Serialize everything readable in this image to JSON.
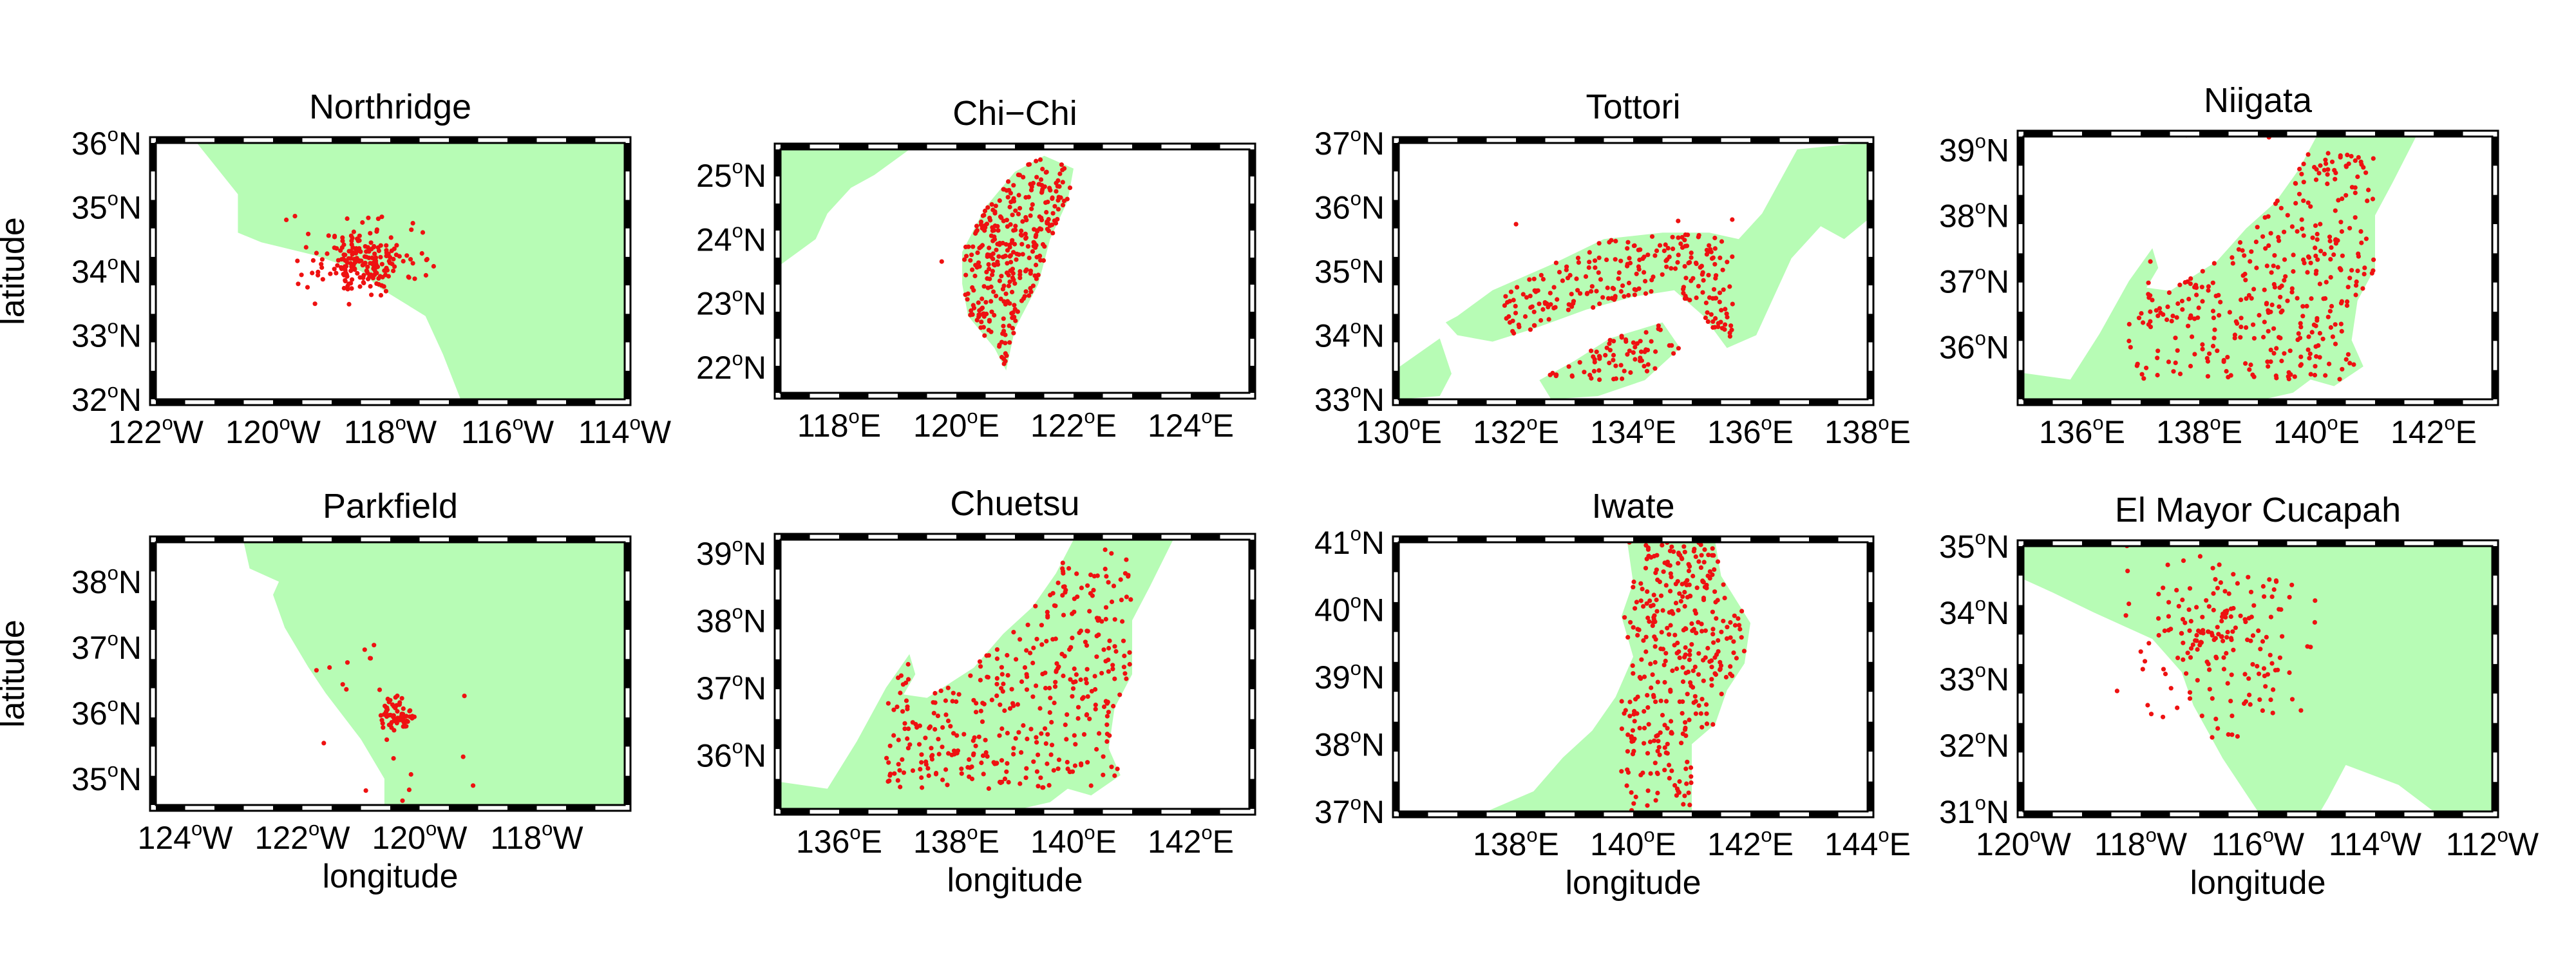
{
  "panels": [
    {
      "id": "northridge",
      "title": "Northridge",
      "axis_labels": {
        "y": "latitude",
        "x": ""
      },
      "x_ticks": [
        "122",
        "120",
        "118",
        "116",
        "114"
      ],
      "x_hemi": "W",
      "y_ticks": [
        "36",
        "35",
        "34",
        "33",
        "32"
      ],
      "y_hemi": "N",
      "lon_range": [
        -122,
        -114
      ],
      "lat_range": [
        32,
        36
      ],
      "land": [
        [
          [
            -121.3,
            36
          ],
          [
            -114,
            36
          ],
          [
            -114,
            32
          ],
          [
            -116.8,
            32
          ],
          [
            -117.1,
            32.7
          ],
          [
            -117.4,
            33.3
          ],
          [
            -118.2,
            33.75
          ],
          [
            -118.5,
            34.0
          ],
          [
            -119.3,
            34.25
          ],
          [
            -120.2,
            34.45
          ],
          [
            -120.6,
            34.6
          ],
          [
            -120.6,
            35.2
          ],
          [
            -121.3,
            36
          ]
        ]
      ],
      "cluster": {
        "center": [
          -118.45,
          34.15
        ],
        "spread": [
          0.35,
          0.25
        ],
        "count": 180,
        "scatter_count": 35,
        "scatter_spread": [
          0.9,
          0.6
        ],
        "seed": 11
      }
    },
    {
      "id": "chi-chi",
      "title": "Chi−Chi",
      "axis_labels": {
        "y": "",
        "x": ""
      },
      "x_ticks": [
        "118",
        "120",
        "122",
        "124"
      ],
      "x_hemi": "E",
      "y_ticks": [
        "25",
        "24",
        "23",
        "22"
      ],
      "y_hemi": "N",
      "lon_range": [
        117,
        125
      ],
      "lat_range": [
        21.6,
        25.4
      ],
      "land": [
        [
          [
            117,
            23.6
          ],
          [
            117,
            25.4
          ],
          [
            119.2,
            25.4
          ],
          [
            118.6,
            25.0
          ],
          [
            118.2,
            24.8
          ],
          [
            117.8,
            24.4
          ],
          [
            117.6,
            24.0
          ],
          [
            117,
            23.6
          ]
        ]
      ],
      "island": [
        [
          [
            121.5,
            25.3
          ],
          [
            122.0,
            25.1
          ],
          [
            121.9,
            24.6
          ],
          [
            121.6,
            24.0
          ],
          [
            121.4,
            23.3
          ],
          [
            121.0,
            22.6
          ],
          [
            120.85,
            21.95
          ],
          [
            120.65,
            22.3
          ],
          [
            120.2,
            22.8
          ],
          [
            120.1,
            23.3
          ],
          [
            120.1,
            23.8
          ],
          [
            120.5,
            24.5
          ],
          [
            121.0,
            25.05
          ],
          [
            121.5,
            25.3
          ]
        ]
      ],
      "cluster": {
        "polygon_fill": true,
        "count": 330,
        "scatter_count": 3,
        "seed": 22
      }
    },
    {
      "id": "tottori",
      "title": "Tottori",
      "axis_labels": {
        "y": "",
        "x": ""
      },
      "x_ticks": [
        "130",
        "132",
        "134",
        "136",
        "138"
      ],
      "x_hemi": "E",
      "y_ticks": [
        "37",
        "36",
        "35",
        "34",
        "33"
      ],
      "y_hemi": "N",
      "lon_range": [
        130,
        138
      ],
      "lat_range": [
        33,
        37
      ],
      "land": [
        [
          [
            131,
            34.3
          ],
          [
            131.6,
            34.7
          ],
          [
            132.6,
            35.1
          ],
          [
            133.5,
            35.5
          ],
          [
            134.5,
            35.6
          ],
          [
            135.3,
            35.6
          ],
          [
            135.8,
            35.5
          ],
          [
            136.2,
            35.9
          ],
          [
            136.8,
            36.9
          ],
          [
            137.9,
            37
          ],
          [
            138,
            37
          ],
          [
            138,
            35.8
          ],
          [
            137.6,
            35.5
          ],
          [
            137.2,
            35.7
          ],
          [
            136.7,
            35.2
          ],
          [
            136.4,
            34.6
          ],
          [
            136.1,
            34.0
          ],
          [
            135.6,
            33.8
          ],
          [
            135.2,
            34.3
          ],
          [
            134.7,
            34.7
          ],
          [
            134.0,
            34.6
          ],
          [
            133.2,
            34.4
          ],
          [
            132.3,
            34.1
          ],
          [
            131.6,
            33.9
          ],
          [
            131.0,
            34.0
          ],
          [
            130.8,
            34.2
          ],
          [
            131,
            34.3
          ]
        ],
        [
          [
            132.4,
            33.3
          ],
          [
            133.0,
            33.6
          ],
          [
            133.6,
            33.95
          ],
          [
            134.5,
            34.2
          ],
          [
            134.8,
            33.8
          ],
          [
            134.2,
            33.3
          ],
          [
            133.4,
            33.05
          ],
          [
            132.6,
            33.0
          ],
          [
            132.4,
            33.3
          ]
        ],
        [
          [
            130,
            33.5
          ],
          [
            130.7,
            33.95
          ],
          [
            130.9,
            33.4
          ],
          [
            130.7,
            33.05
          ],
          [
            130,
            33
          ],
          [
            130,
            33.5
          ]
        ]
      ],
      "cluster": {
        "region": [
          [
            131.8,
            33.3
          ],
          [
            135.7,
            35.7
          ]
        ],
        "count": 310,
        "scatter_count": 3,
        "seed": 33
      }
    },
    {
      "id": "niigata",
      "title": "Niigata",
      "axis_labels": {
        "y": "",
        "x": ""
      },
      "x_ticks": [
        "136",
        "138",
        "140",
        "142"
      ],
      "x_hemi": "E",
      "y_ticks": [
        "39",
        "38",
        "37",
        "36"
      ],
      "y_hemi": "N",
      "lon_range": [
        135,
        143
      ],
      "lat_range": [
        35.2,
        39.2
      ],
      "land": [
        [
          [
            135,
            35.6
          ],
          [
            135.8,
            35.5
          ],
          [
            136.3,
            36.2
          ],
          [
            136.8,
            37.0
          ],
          [
            137.2,
            37.5
          ],
          [
            137.3,
            37.2
          ],
          [
            137.1,
            36.9
          ],
          [
            137.5,
            36.85
          ],
          [
            138.3,
            37.3
          ],
          [
            138.8,
            37.8
          ],
          [
            139.3,
            38.2
          ],
          [
            139.7,
            38.7
          ],
          [
            140.0,
            39.2
          ],
          [
            141.7,
            39.2
          ],
          [
            141.3,
            38.5
          ],
          [
            141.0,
            38.0
          ],
          [
            141.0,
            37.2
          ],
          [
            140.7,
            36.7
          ],
          [
            140.6,
            36.1
          ],
          [
            140.8,
            35.7
          ],
          [
            140.3,
            35.4
          ],
          [
            139.9,
            35.5
          ],
          [
            139.6,
            35.3
          ],
          [
            139.1,
            35.2
          ],
          [
            138.4,
            35.2
          ],
          [
            137.3,
            35.2
          ],
          [
            136.0,
            35.2
          ],
          [
            135,
            35.2
          ],
          [
            135,
            35.6
          ]
        ]
      ],
      "cluster": {
        "region": [
          [
            136.8,
            35.5
          ],
          [
            141.0,
            39.0
          ]
        ],
        "count": 360,
        "scatter_count": 4,
        "seed": 44
      }
    },
    {
      "id": "parkfield",
      "title": "Parkfield",
      "axis_labels": {
        "y": "latitude",
        "x": "longitude"
      },
      "x_ticks": [
        "124",
        "122",
        "120",
        "118"
      ],
      "x_hemi": "W",
      "y_ticks": [
        "38",
        "37",
        "36",
        "35"
      ],
      "y_hemi": "N",
      "lon_range": [
        -124.5,
        -116.5
      ],
      "lat_range": [
        34.6,
        38.6
      ],
      "land": [
        [
          [
            -123.0,
            38.6
          ],
          [
            -116.5,
            38.6
          ],
          [
            -116.5,
            34.6
          ],
          [
            -120.6,
            34.6
          ],
          [
            -120.6,
            35.0
          ],
          [
            -121.0,
            35.6
          ],
          [
            -121.6,
            36.3
          ],
          [
            -121.9,
            36.7
          ],
          [
            -122.3,
            37.3
          ],
          [
            -122.5,
            37.8
          ],
          [
            -122.4,
            38.0
          ],
          [
            -122.9,
            38.2
          ],
          [
            -123.0,
            38.6
          ]
        ]
      ],
      "cluster": {
        "center": [
          -120.4,
          35.95
        ],
        "spread": [
          0.15,
          0.12
        ],
        "count": 70,
        "scatter_count": 20,
        "scatter_spread": [
          1.0,
          0.9
        ],
        "seed": 55
      }
    },
    {
      "id": "chuetsu",
      "title": "Chuetsu",
      "axis_labels": {
        "y": "",
        "x": "longitude"
      },
      "x_ticks": [
        "136",
        "138",
        "140",
        "142"
      ],
      "x_hemi": "E",
      "y_ticks": [
        "39",
        "38",
        "37",
        "36"
      ],
      "y_hemi": "N",
      "lon_range": [
        135,
        143
      ],
      "lat_range": [
        35.2,
        39.2
      ],
      "land": [
        [
          [
            135,
            35.6
          ],
          [
            135.8,
            35.5
          ],
          [
            136.3,
            36.2
          ],
          [
            136.8,
            37.0
          ],
          [
            137.2,
            37.5
          ],
          [
            137.3,
            37.2
          ],
          [
            137.1,
            36.9
          ],
          [
            137.5,
            36.85
          ],
          [
            138.3,
            37.3
          ],
          [
            138.8,
            37.8
          ],
          [
            139.3,
            38.2
          ],
          [
            139.7,
            38.7
          ],
          [
            140.0,
            39.2
          ],
          [
            141.7,
            39.2
          ],
          [
            141.3,
            38.5
          ],
          [
            141.0,
            38.0
          ],
          [
            141.0,
            37.2
          ],
          [
            140.7,
            36.7
          ],
          [
            140.6,
            36.1
          ],
          [
            140.8,
            35.7
          ],
          [
            140.3,
            35.4
          ],
          [
            139.9,
            35.5
          ],
          [
            139.6,
            35.3
          ],
          [
            139.1,
            35.2
          ],
          [
            138.4,
            35.2
          ],
          [
            137.3,
            35.2
          ],
          [
            136.0,
            35.2
          ],
          [
            135,
            35.2
          ],
          [
            135,
            35.6
          ]
        ]
      ],
      "cluster": {
        "region": [
          [
            136.8,
            35.5
          ],
          [
            141.0,
            39.0
          ]
        ],
        "count": 380,
        "scatter_count": 5,
        "seed": 66
      }
    },
    {
      "id": "iwate",
      "title": "Iwate",
      "axis_labels": {
        "y": "",
        "x": "longitude"
      },
      "x_ticks": [
        "138",
        "140",
        "142",
        "144"
      ],
      "x_hemi": "E",
      "y_ticks": [
        "41",
        "40",
        "39",
        "38",
        "37"
      ],
      "y_hemi": "N",
      "lon_range": [
        136,
        144
      ],
      "lat_range": [
        37,
        41
      ],
      "land": [
        [
          [
            139.9,
            41
          ],
          [
            141.4,
            41
          ],
          [
            141.5,
            40.5
          ],
          [
            142.0,
            39.8
          ],
          [
            141.9,
            39.2
          ],
          [
            141.6,
            38.8
          ],
          [
            141.4,
            38.3
          ],
          [
            141.0,
            38.0
          ],
          [
            141.0,
            37.0
          ],
          [
            137.5,
            37.0
          ],
          [
            138.3,
            37.3
          ],
          [
            138.8,
            37.8
          ],
          [
            139.3,
            38.2
          ],
          [
            139.7,
            38.7
          ],
          [
            140.0,
            39.3
          ],
          [
            139.8,
            39.9
          ],
          [
            140.0,
            40.4
          ],
          [
            139.9,
            41
          ]
        ]
      ],
      "cluster": {
        "region": [
          [
            139.8,
            37.0
          ],
          [
            141.9,
            41.0
          ]
        ],
        "count": 360,
        "scatter_count": 2,
        "seed": 77
      }
    },
    {
      "id": "el-mayor-cucapah",
      "title": "El Mayor Cucapah",
      "axis_labels": {
        "y": "",
        "x": "longitude"
      },
      "x_ticks": [
        "120",
        "118",
        "116",
        "114",
        "112"
      ],
      "x_hemi": "W",
      "y_ticks": [
        "35",
        "34",
        "33",
        "32",
        "31"
      ],
      "y_hemi": "N",
      "lon_range": [
        -120,
        -112
      ],
      "lat_range": [
        31,
        35
      ],
      "land": [
        [
          [
            -120,
            34.5
          ],
          [
            -120,
            35
          ],
          [
            -112,
            35
          ],
          [
            -112,
            31
          ],
          [
            -113.0,
            31
          ],
          [
            -113.6,
            31.4
          ],
          [
            -114.5,
            31.7
          ],
          [
            -114.8,
            31.2
          ],
          [
            -115.0,
            30.9
          ],
          [
            -116.0,
            31.0
          ],
          [
            -116.6,
            31.8
          ],
          [
            -117.1,
            32.6
          ],
          [
            -117.3,
            33.1
          ],
          [
            -117.8,
            33.6
          ],
          [
            -118.3,
            33.8
          ],
          [
            -118.8,
            34.0
          ],
          [
            -119.5,
            34.3
          ],
          [
            -120,
            34.5
          ]
        ]
      ],
      "cluster": {
        "center": [
          -116.6,
          33.6
        ],
        "spread": [
          0.55,
          0.55
        ],
        "count": 140,
        "scatter_count": 45,
        "scatter_spread": [
          1.1,
          1.0
        ],
        "seed": 88
      }
    }
  ],
  "colors": {
    "land": "#b7fcb5",
    "station": "#ee1111",
    "frame": "#000000"
  }
}
